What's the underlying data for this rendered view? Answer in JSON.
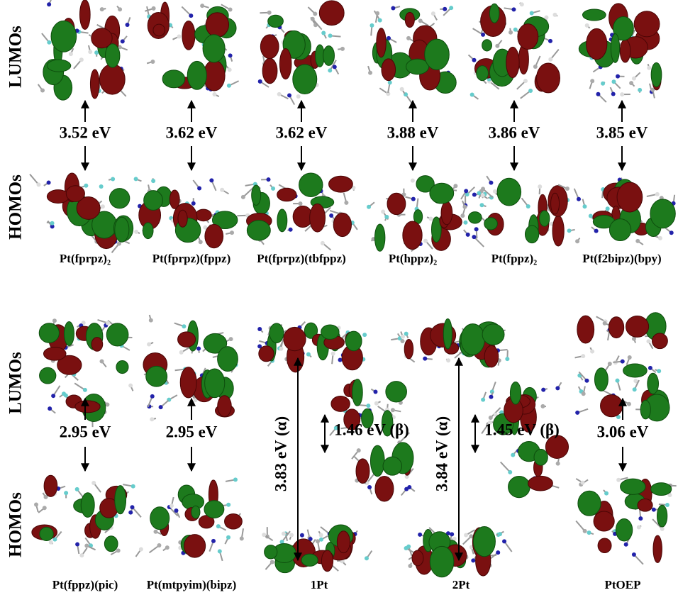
{
  "rows": [
    {
      "lumo_label": "LUMOs",
      "homo_label": "HOMOs",
      "molecules": [
        {
          "name": "Pt(fprpz)₂",
          "gap": "3.52 eV"
        },
        {
          "name": "Pt(fprpz)(fppz)",
          "gap": "3.62 eV"
        },
        {
          "name": "Pt(fprpz)(tbfppz)",
          "gap": "3.62 eV"
        },
        {
          "name": "Pt(hppz)₂",
          "gap": "3.88 eV"
        },
        {
          "name": "Pt(fppz)₂",
          "gap": "3.86 eV"
        },
        {
          "name": "Pt(f2bipz)(bpy)",
          "gap": "3.85 eV"
        }
      ]
    },
    {
      "lumo_label": "LUMOs",
      "homo_label": "HOMOs",
      "molecules": [
        {
          "name": "Pt(fppz)(pic)",
          "gap": "2.95 eV"
        },
        {
          "name": "Pt(mtpyim)(bipz)",
          "gap": "2.95 eV"
        },
        {
          "name": "1Pt",
          "gap_alpha": "3.83 eV (α)",
          "gap_beta": "1.46 eV (β)"
        },
        {
          "name": "2Pt",
          "gap_alpha": "3.84 eV (α)",
          "gap_beta": "1.45 eV (β)"
        },
        {
          "name": "PtOEP",
          "gap": "3.06 eV"
        }
      ]
    }
  ]
}
